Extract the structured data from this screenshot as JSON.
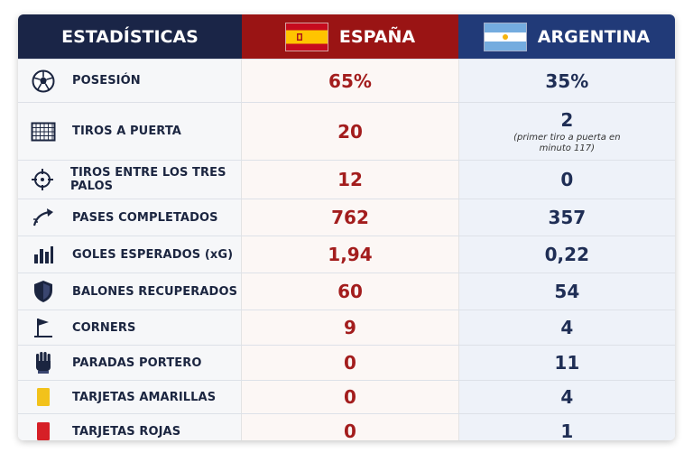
{
  "header": {
    "stats_label": "ESTADÍSTICAS",
    "team1": "ESPAÑA",
    "team2": "ARGENTINA"
  },
  "colors": {
    "header_stats_bg": "#1a2547",
    "spain_red": "#9a1414",
    "argentina_blue": "#213a78",
    "spain_value": "#a31d1d",
    "argentina_value": "#1f2e55"
  },
  "rows": [
    {
      "icon": "soccer-ball-icon",
      "label": "POSESIÓN",
      "spain": "65%",
      "argentina": "35%",
      "note": ""
    },
    {
      "icon": "goal-net-icon",
      "label": "TIROS A PUERTA",
      "spain": "20",
      "argentina": "2",
      "note": "(primer tiro a puerta en minuto 117)"
    },
    {
      "icon": "crosshair-icon",
      "label": "TIROS ENTRE LOS TRES PALOS",
      "spain": "12",
      "argentina": "0",
      "note": ""
    },
    {
      "icon": "pass-arrow-icon",
      "label": "PASES COMPLETADOS",
      "spain": "762",
      "argentina": "357",
      "note": ""
    },
    {
      "icon": "bar-chart-icon",
      "label": "GOLES ESPERADOS (xG)",
      "spain": "1,94",
      "argentina": "0,22",
      "note": ""
    },
    {
      "icon": "shield-icon",
      "label": "BALONES RECUPERADOS",
      "spain": "60",
      "argentina": "54",
      "note": ""
    },
    {
      "icon": "corner-flag-icon",
      "label": "CORNERS",
      "spain": "9",
      "argentina": "4",
      "note": ""
    },
    {
      "icon": "goalkeeper-glove-icon",
      "label": "PARADAS PORTERO",
      "spain": "0",
      "argentina": "11",
      "note": ""
    },
    {
      "icon": "yellow-card-icon",
      "label": "TARJETAS AMARILLAS",
      "spain": "0",
      "argentina": "4",
      "note": ""
    },
    {
      "icon": "red-card-icon",
      "label": "TARJETAS ROJAS",
      "spain": "0",
      "argentina": "1",
      "note": ""
    }
  ]
}
